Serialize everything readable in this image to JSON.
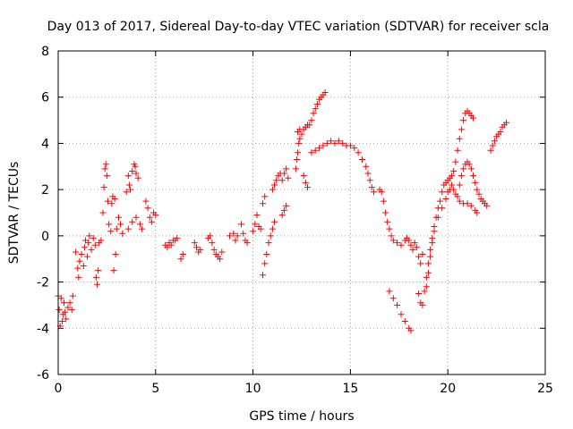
{
  "chart_data": {
    "type": "scatter",
    "title": "Day 013 of 2017, Sidereal Day-to-day VTEC variation (SDTVAR) for receiver scla",
    "xlabel": "GPS time / hours",
    "ylabel": "SDTVAR / TECUs",
    "xlim": [
      0,
      25
    ],
    "ylim": [
      -6,
      8
    ],
    "xticks": [
      0,
      5,
      10,
      15,
      20,
      25
    ],
    "yticks": [
      -6,
      -4,
      -2,
      0,
      2,
      4,
      6,
      8
    ],
    "grid": true,
    "marker": "+",
    "color": "#ff0000",
    "series": [
      {
        "name": "SDTVAR",
        "points": [
          [
            0.0,
            -2.6
          ],
          [
            0.05,
            -3.2
          ],
          [
            0.1,
            -3.9
          ],
          [
            0.15,
            -2.7
          ],
          [
            0.2,
            -3.7
          ],
          [
            0.25,
            -3.4
          ],
          [
            0.3,
            -2.9
          ],
          [
            0.35,
            -3.3
          ],
          [
            0.4,
            -3.6
          ],
          [
            0.5,
            -3.1
          ],
          [
            0.6,
            -2.9
          ],
          [
            0.7,
            -3.2
          ],
          [
            0.75,
            -2.6
          ],
          [
            0.9,
            -0.7
          ],
          [
            1.0,
            -1.4
          ],
          [
            1.05,
            -1.8
          ],
          [
            1.1,
            -1.1
          ],
          [
            1.2,
            -0.8
          ],
          [
            1.3,
            -1.3
          ],
          [
            1.35,
            -0.5
          ],
          [
            1.4,
            -0.2
          ],
          [
            1.5,
            -0.9
          ],
          [
            1.55,
            -0.3
          ],
          [
            1.6,
            0.0
          ],
          [
            1.7,
            -0.6
          ],
          [
            1.8,
            -0.1
          ],
          [
            1.9,
            -0.4
          ],
          [
            1.95,
            -1.8
          ],
          [
            2.0,
            -2.1
          ],
          [
            2.05,
            -1.5
          ],
          [
            2.1,
            -0.3
          ],
          [
            2.2,
            -0.2
          ],
          [
            2.3,
            1.0
          ],
          [
            2.35,
            2.1
          ],
          [
            2.4,
            2.9
          ],
          [
            2.45,
            3.1
          ],
          [
            2.5,
            2.6
          ],
          [
            2.55,
            1.5
          ],
          [
            2.6,
            0.5
          ],
          [
            2.7,
            0.2
          ],
          [
            2.75,
            1.4
          ],
          [
            2.8,
            1.7
          ],
          [
            2.9,
            1.6
          ],
          [
            2.85,
            -1.5
          ],
          [
            2.95,
            -0.8
          ],
          [
            3.0,
            0.3
          ],
          [
            3.1,
            0.8
          ],
          [
            3.2,
            0.5
          ],
          [
            3.3,
            0.1
          ],
          [
            3.5,
            1.9
          ],
          [
            3.6,
            2.6
          ],
          [
            3.65,
            2.2
          ],
          [
            3.7,
            2.0
          ],
          [
            3.8,
            2.8
          ],
          [
            3.9,
            3.1
          ],
          [
            3.95,
            3.0
          ],
          [
            4.0,
            2.7
          ],
          [
            4.1,
            2.5
          ],
          [
            3.6,
            0.3
          ],
          [
            3.8,
            0.6
          ],
          [
            4.0,
            0.8
          ],
          [
            4.2,
            0.5
          ],
          [
            4.3,
            0.3
          ],
          [
            4.5,
            1.5
          ],
          [
            4.6,
            1.2
          ],
          [
            4.7,
            0.8
          ],
          [
            4.8,
            0.6
          ],
          [
            4.9,
            1.0
          ],
          [
            5.0,
            0.9
          ],
          [
            5.5,
            -0.4
          ],
          [
            5.6,
            -0.5
          ],
          [
            5.7,
            -0.3
          ],
          [
            5.8,
            -0.4
          ],
          [
            5.9,
            -0.2
          ],
          [
            6.0,
            -0.2
          ],
          [
            6.1,
            -0.1
          ],
          [
            6.3,
            -1.0
          ],
          [
            6.4,
            -0.8
          ],
          [
            7.0,
            -0.3
          ],
          [
            7.1,
            -0.5
          ],
          [
            7.2,
            -0.7
          ],
          [
            7.3,
            -0.6
          ],
          [
            7.7,
            -0.1
          ],
          [
            7.8,
            0.0
          ],
          [
            7.9,
            -0.3
          ],
          [
            8.0,
            -0.6
          ],
          [
            8.1,
            -0.8
          ],
          [
            8.2,
            -0.9
          ],
          [
            8.3,
            -1.0
          ],
          [
            8.4,
            -0.7
          ],
          [
            8.8,
            0.0
          ],
          [
            9.0,
            0.1
          ],
          [
            9.1,
            -0.2
          ],
          [
            9.2,
            0.0
          ],
          [
            9.4,
            0.5
          ],
          [
            9.5,
            0.1
          ],
          [
            9.6,
            -0.2
          ],
          [
            9.7,
            -0.3
          ],
          [
            10.0,
            0.2
          ],
          [
            10.1,
            0.5
          ],
          [
            10.2,
            0.9
          ],
          [
            10.3,
            0.4
          ],
          [
            10.4,
            0.3
          ],
          [
            10.5,
            1.4
          ],
          [
            10.6,
            1.7
          ],
          [
            10.5,
            -1.7
          ],
          [
            10.6,
            -1.2
          ],
          [
            10.7,
            -0.8
          ],
          [
            10.8,
            -0.3
          ],
          [
            10.9,
            0.0
          ],
          [
            11.0,
            0.3
          ],
          [
            11.1,
            0.6
          ],
          [
            11.0,
            2.0
          ],
          [
            11.1,
            2.2
          ],
          [
            11.2,
            2.4
          ],
          [
            11.3,
            2.6
          ],
          [
            11.4,
            2.7
          ],
          [
            11.5,
            0.9
          ],
          [
            11.6,
            1.1
          ],
          [
            11.7,
            1.3
          ],
          [
            11.5,
            2.4
          ],
          [
            11.6,
            2.7
          ],
          [
            11.7,
            2.9
          ],
          [
            11.8,
            2.5
          ],
          [
            12.2,
            2.9
          ],
          [
            12.25,
            3.3
          ],
          [
            12.3,
            3.6
          ],
          [
            12.35,
            4.0
          ],
          [
            12.4,
            4.2
          ],
          [
            12.3,
            4.5
          ],
          [
            12.4,
            4.6
          ],
          [
            12.5,
            4.4
          ],
          [
            12.6,
            4.6
          ],
          [
            12.7,
            4.7
          ],
          [
            12.8,
            4.8
          ],
          [
            12.9,
            4.8
          ],
          [
            12.6,
            2.6
          ],
          [
            12.7,
            2.3
          ],
          [
            12.8,
            2.1
          ],
          [
            13.0,
            5.0
          ],
          [
            13.1,
            5.3
          ],
          [
            13.2,
            5.5
          ],
          [
            13.3,
            5.7
          ],
          [
            13.4,
            5.9
          ],
          [
            13.5,
            6.0
          ],
          [
            13.6,
            6.1
          ],
          [
            13.7,
            6.2
          ],
          [
            13.0,
            3.6
          ],
          [
            13.2,
            3.7
          ],
          [
            13.4,
            3.8
          ],
          [
            13.6,
            3.9
          ],
          [
            13.8,
            4.0
          ],
          [
            14.0,
            4.1
          ],
          [
            14.2,
            4.0
          ],
          [
            14.4,
            4.1
          ],
          [
            14.6,
            4.0
          ],
          [
            14.8,
            3.9
          ],
          [
            15.0,
            3.9
          ],
          [
            15.2,
            3.8
          ],
          [
            15.4,
            3.6
          ],
          [
            15.6,
            3.3
          ],
          [
            15.8,
            3.0
          ],
          [
            15.9,
            2.7
          ],
          [
            16.0,
            2.4
          ],
          [
            16.1,
            2.1
          ],
          [
            16.2,
            1.9
          ],
          [
            16.5,
            2.0
          ],
          [
            16.6,
            1.9
          ],
          [
            16.7,
            1.5
          ],
          [
            16.8,
            1.0
          ],
          [
            16.9,
            0.6
          ],
          [
            17.0,
            0.3
          ],
          [
            17.1,
            0.0
          ],
          [
            17.2,
            -0.2
          ],
          [
            17.4,
            -0.3
          ],
          [
            17.6,
            -0.4
          ],
          [
            17.8,
            -0.2
          ],
          [
            17.9,
            -0.1
          ],
          [
            18.0,
            -0.2
          ],
          [
            18.1,
            -0.4
          ],
          [
            18.2,
            -0.6
          ],
          [
            17.0,
            -2.4
          ],
          [
            17.2,
            -2.7
          ],
          [
            17.4,
            -3.0
          ],
          [
            17.6,
            -3.4
          ],
          [
            17.8,
            -3.7
          ],
          [
            18.0,
            -4.0
          ],
          [
            18.1,
            -4.1
          ],
          [
            18.3,
            -0.3
          ],
          [
            18.4,
            -0.5
          ],
          [
            18.5,
            -0.9
          ],
          [
            18.6,
            -1.2
          ],
          [
            18.7,
            -0.8
          ],
          [
            18.5,
            -2.5
          ],
          [
            18.6,
            -2.9
          ],
          [
            18.7,
            -3.0
          ],
          [
            18.8,
            -2.4
          ],
          [
            18.9,
            -1.8
          ],
          [
            19.0,
            -1.2
          ],
          [
            19.1,
            -0.6
          ],
          [
            19.2,
            -0.1
          ],
          [
            19.3,
            0.4
          ],
          [
            19.4,
            0.8
          ],
          [
            19.5,
            1.2
          ],
          [
            19.6,
            1.5
          ],
          [
            19.7,
            1.9
          ],
          [
            19.8,
            2.2
          ],
          [
            19.9,
            2.3
          ],
          [
            18.9,
            -2.2
          ],
          [
            19.0,
            -1.6
          ],
          [
            19.1,
            -0.9
          ],
          [
            19.2,
            -0.3
          ],
          [
            19.3,
            0.2
          ],
          [
            19.5,
            0.8
          ],
          [
            19.7,
            1.2
          ],
          [
            19.9,
            1.6
          ],
          [
            20.0,
            2.4
          ],
          [
            20.1,
            2.5
          ],
          [
            20.2,
            2.6
          ],
          [
            20.3,
            2.8
          ],
          [
            20.4,
            3.2
          ],
          [
            20.5,
            3.7
          ],
          [
            20.6,
            4.2
          ],
          [
            20.7,
            4.6
          ],
          [
            20.8,
            5.0
          ],
          [
            20.9,
            5.3
          ],
          [
            21.0,
            5.4
          ],
          [
            21.1,
            5.3
          ],
          [
            21.2,
            5.2
          ],
          [
            21.3,
            5.1
          ],
          [
            20.0,
            1.9
          ],
          [
            20.1,
            2.0
          ],
          [
            20.2,
            2.2
          ],
          [
            20.3,
            2.0
          ],
          [
            20.4,
            1.8
          ],
          [
            20.5,
            1.7
          ],
          [
            20.6,
            2.2
          ],
          [
            20.7,
            2.6
          ],
          [
            20.8,
            2.9
          ],
          [
            20.9,
            3.1
          ],
          [
            21.0,
            3.2
          ],
          [
            21.1,
            3.1
          ],
          [
            21.2,
            2.9
          ],
          [
            21.3,
            2.6
          ],
          [
            21.4,
            2.3
          ],
          [
            21.5,
            2.0
          ],
          [
            21.6,
            1.8
          ],
          [
            21.7,
            1.6
          ],
          [
            21.8,
            1.5
          ],
          [
            21.9,
            1.4
          ],
          [
            22.0,
            1.3
          ],
          [
            20.6,
            1.5
          ],
          [
            20.8,
            1.4
          ],
          [
            21.0,
            1.4
          ],
          [
            21.2,
            1.3
          ],
          [
            21.4,
            1.1
          ],
          [
            21.5,
            1.0
          ],
          [
            22.2,
            3.7
          ],
          [
            22.3,
            3.9
          ],
          [
            22.4,
            4.1
          ],
          [
            22.5,
            4.3
          ],
          [
            22.6,
            4.4
          ],
          [
            22.7,
            4.5
          ],
          [
            22.8,
            4.7
          ],
          [
            22.9,
            4.8
          ],
          [
            23.0,
            4.9
          ]
        ]
      }
    ]
  }
}
